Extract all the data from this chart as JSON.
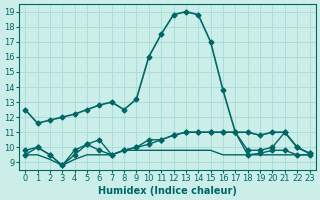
{
  "title": "",
  "xlabel": "Humidex (Indice chaleur)",
  "ylabel": "",
  "background_color": "#cceee8",
  "grid_color": "#aadddd",
  "line_color": "#006666",
  "xlim": [
    -0.5,
    23.5
  ],
  "ylim": [
    8.5,
    19.5
  ],
  "yticks": [
    9,
    10,
    11,
    12,
    13,
    14,
    15,
    16,
    17,
    18,
    19
  ],
  "xticks": [
    0,
    1,
    2,
    3,
    4,
    5,
    6,
    7,
    8,
    9,
    10,
    11,
    12,
    13,
    14,
    15,
    16,
    17,
    18,
    19,
    20,
    21,
    22,
    23
  ],
  "series": [
    {
      "x": [
        0,
        1,
        2,
        3,
        4,
        5,
        6,
        7,
        8,
        9,
        10,
        11,
        12,
        13,
        14,
        15,
        16,
        17,
        18,
        19,
        20,
        21,
        22,
        23
      ],
      "y": [
        12.5,
        11.6,
        11.8,
        12.0,
        12.2,
        12.5,
        12.8,
        13.0,
        12.5,
        13.2,
        16.0,
        17.5,
        18.8,
        19.0,
        18.8,
        17.0,
        13.8,
        11.0,
        11.0,
        10.8,
        11.0,
        11.0,
        10.0,
        9.6
      ],
      "marker": "D",
      "markersize": 2.5,
      "linewidth": 1.2
    },
    {
      "x": [
        0,
        1,
        2,
        3,
        4,
        5,
        6,
        7,
        8,
        9,
        10,
        11,
        12,
        13,
        14,
        15,
        16,
        17,
        18,
        19,
        20,
        21,
        22,
        23
      ],
      "y": [
        9.5,
        10.0,
        9.5,
        8.8,
        9.5,
        10.2,
        9.8,
        9.5,
        9.8,
        10.0,
        10.2,
        10.5,
        10.8,
        11.0,
        11.0,
        11.0,
        11.0,
        11.0,
        9.5,
        9.6,
        9.8,
        9.8,
        9.5,
        9.5
      ],
      "marker": "D",
      "markersize": 2.5,
      "linewidth": 1.0
    },
    {
      "x": [
        0,
        1,
        2,
        3,
        4,
        5,
        6,
        7,
        8,
        9,
        10,
        11,
        12,
        13,
        14,
        15,
        16,
        17,
        18,
        19,
        20,
        21,
        22,
        23
      ],
      "y": [
        9.8,
        10.0,
        9.5,
        8.8,
        9.8,
        10.2,
        10.5,
        9.5,
        9.8,
        10.0,
        10.5,
        10.5,
        10.8,
        11.0,
        11.0,
        11.0,
        11.0,
        11.0,
        9.8,
        9.8,
        10.0,
        11.0,
        10.0,
        9.6
      ],
      "marker": "D",
      "markersize": 2.5,
      "linewidth": 1.0
    },
    {
      "x": [
        0,
        1,
        2,
        3,
        4,
        5,
        6,
        7,
        8,
        9,
        10,
        11,
        12,
        13,
        14,
        15,
        16,
        17,
        18,
        19,
        20,
        21,
        22,
        23
      ],
      "y": [
        9.5,
        9.5,
        9.2,
        8.8,
        9.2,
        9.5,
        9.5,
        9.5,
        9.8,
        9.8,
        9.8,
        9.8,
        9.8,
        9.8,
        9.8,
        9.8,
        9.5,
        9.5,
        9.5,
        9.5,
        9.5,
        9.5,
        9.5,
        9.5
      ],
      "marker": null,
      "markersize": 0,
      "linewidth": 1.0
    }
  ]
}
